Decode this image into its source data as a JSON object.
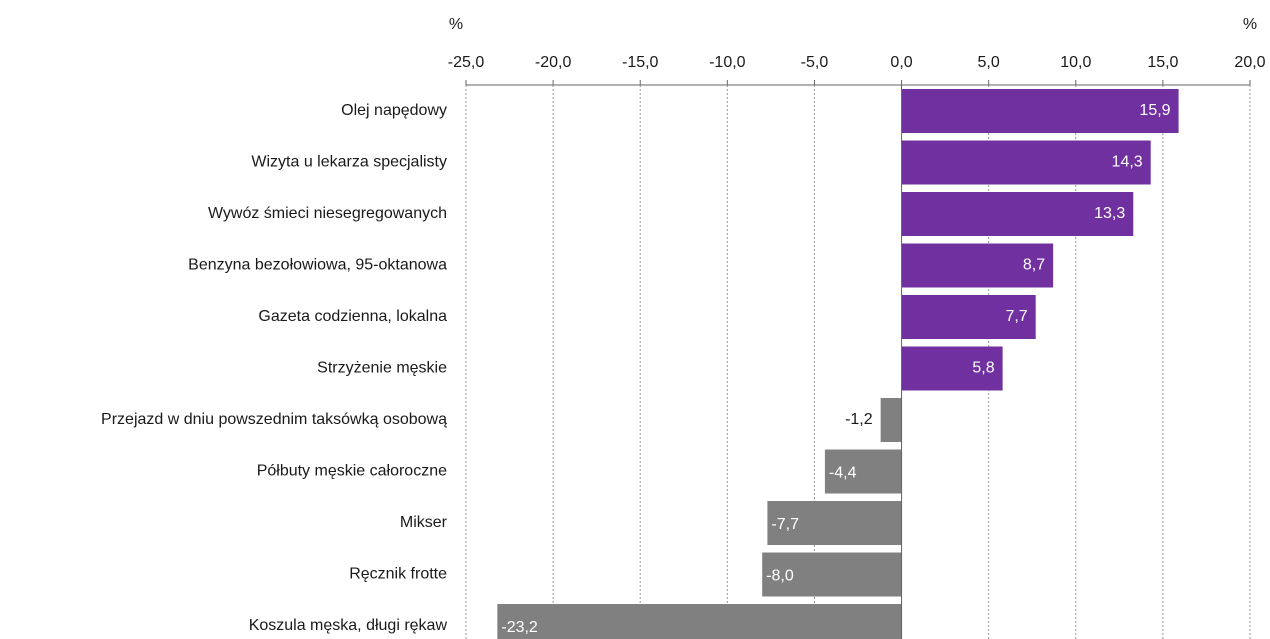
{
  "chart_data": {
    "type": "barh",
    "axis_labels": [
      "%",
      "%"
    ],
    "categories": [
      "Olej napędowy",
      "Wizyta u lekarza specjalisty",
      "Wywóz śmieci niesegregowanych ",
      "Benzyna bezołowiowa, 95-oktanowa",
      "Gazeta codzienna, lokalna",
      "Strzyżenie męskie",
      "Przejazd w dniu powszednim taksówką osobową",
      "Półbuty męskie całoroczne",
      "Mikser",
      "Ręcznik frotte",
      "Koszula męska, długi rękaw"
    ],
    "values": [
      15.9,
      14.3,
      13.3,
      8.7,
      7.7,
      5.8,
      -1.2,
      -4.4,
      -7.7,
      -8.0,
      -23.2
    ],
    "value_labels": [
      "15,9",
      "14,3",
      "13,3",
      "8,7",
      "7,7",
      "5,8",
      "-1,2",
      "-4,4",
      "-7,7",
      "-8,0",
      "-23,2"
    ],
    "colors": [
      "#7030a0",
      "#7030a0",
      "#7030a0",
      "#7030a0",
      "#7030a0",
      "#7030a0",
      "#808080",
      "#808080",
      "#808080",
      "#808080",
      "#808080"
    ],
    "xlim": [
      -25,
      20
    ],
    "xticks": [
      {
        "value": -25,
        "label": "-25,0"
      },
      {
        "value": -20,
        "label": "-20,0"
      },
      {
        "value": -15,
        "label": "-15,0"
      },
      {
        "value": -10,
        "label": "-10,0"
      },
      {
        "value": -5,
        "label": "-5,0"
      },
      {
        "value": 0,
        "label": "0,0"
      },
      {
        "value": 5,
        "label": "5,0"
      },
      {
        "value": 10,
        "label": "10,0"
      },
      {
        "value": 15,
        "label": "15,0"
      },
      {
        "value": 20,
        "label": "20,0"
      }
    ],
    "grid": true
  }
}
